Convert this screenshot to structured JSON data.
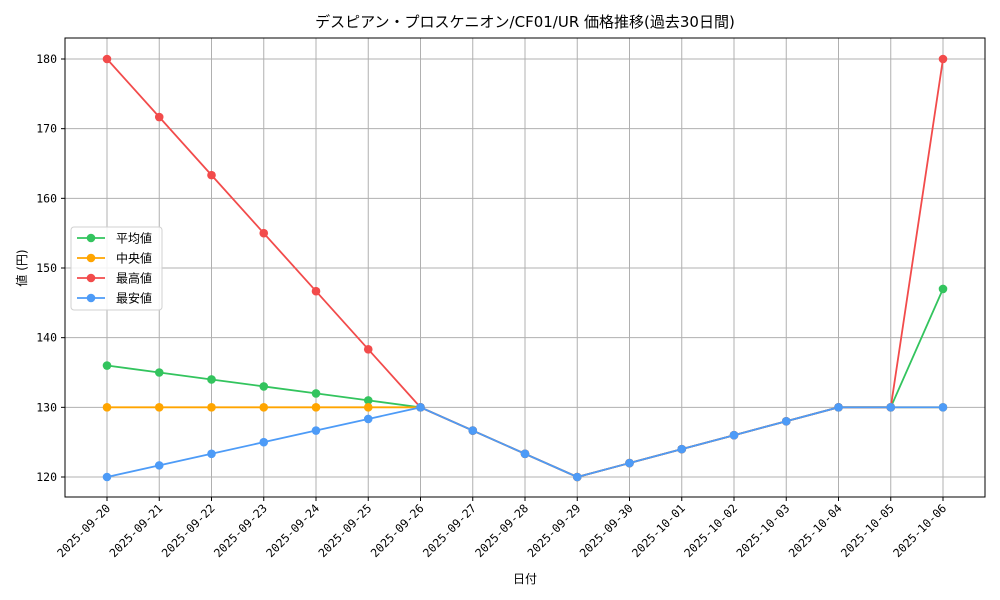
{
  "chart_data": {
    "type": "line",
    "title": "デスピアン・プロスケニオン/CF01/UR 価格推移(過去30日間)",
    "xlabel": "日付",
    "ylabel": "値 (円)",
    "ylim": [
      117,
      183
    ],
    "yticks": [
      120,
      130,
      140,
      150,
      160,
      170,
      180
    ],
    "grid": true,
    "legend_position": "center left",
    "x": [
      "2025-09-20",
      "2025-09-21",
      "2025-09-22",
      "2025-09-23",
      "2025-09-24",
      "2025-09-25",
      "2025-09-26",
      "2025-09-27",
      "2025-09-28",
      "2025-09-29",
      "2025-09-30",
      "2025-10-01",
      "2025-10-02",
      "2025-10-03",
      "2025-10-04",
      "2025-10-05",
      "2025-10-06"
    ],
    "series": [
      {
        "name": "平均値",
        "color": "#33c45e",
        "values": [
          136,
          135,
          134,
          133,
          132,
          131,
          130,
          126.67,
          123.33,
          120,
          122,
          124,
          126,
          128,
          130,
          130,
          147
        ]
      },
      {
        "name": "中央値",
        "color": "#ffa500",
        "values": [
          130,
          130,
          130,
          130,
          130,
          130,
          130,
          126.67,
          123.33,
          120,
          122,
          124,
          126,
          128,
          130,
          130,
          130
        ]
      },
      {
        "name": "最高値",
        "color": "#f24b4b",
        "values": [
          180,
          171.67,
          163.33,
          155,
          146.67,
          138.33,
          130,
          126.67,
          123.33,
          120,
          122,
          124,
          126,
          128,
          130,
          130,
          180
        ]
      },
      {
        "name": "最安値",
        "color": "#4d9bf7",
        "values": [
          120,
          121.67,
          123.33,
          125,
          126.67,
          128.33,
          130,
          126.67,
          123.33,
          120,
          122,
          124,
          126,
          128,
          130,
          130,
          130
        ]
      }
    ]
  }
}
